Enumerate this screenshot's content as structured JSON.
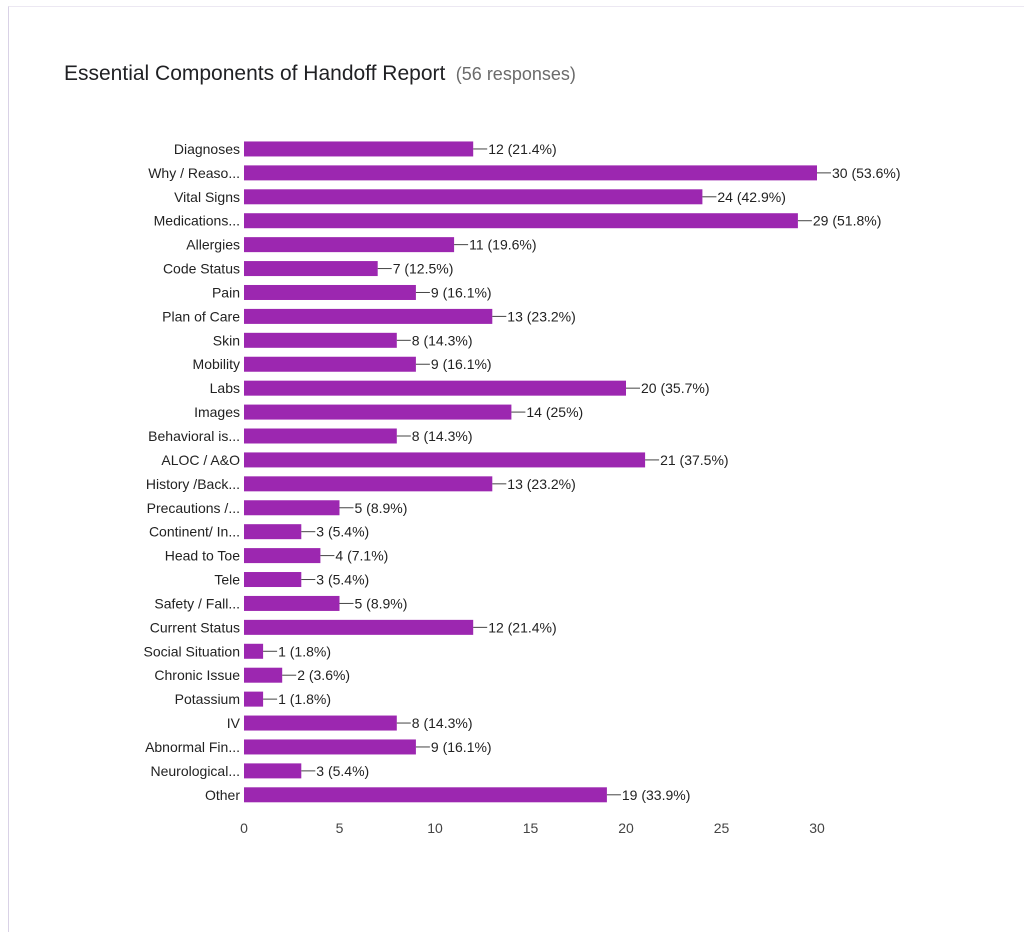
{
  "chart_data": {
    "type": "bar",
    "orientation": "horizontal",
    "title": "Essential Components of Handoff Report",
    "subtitle": "(56 responses)",
    "bar_color": "#9c27b0",
    "categories": [
      "Diagnoses",
      "Why / Reaso...",
      "Vital Signs",
      "Medications...",
      "Allergies",
      "Code Status",
      "Pain",
      "Plan of Care",
      "Skin",
      "Mobility",
      "Labs",
      "Images",
      "Behavioral is...",
      "ALOC / A&O",
      "History /Back...",
      "Precautions /...",
      "Continent/ In...",
      "Head to Toe",
      "Tele",
      "Safety / Fall...",
      "Current Status",
      "Social Situation",
      "Chronic Issue",
      "Potassium",
      "IV",
      "Abnormal Fin...",
      "Neurological...",
      "Other"
    ],
    "values": [
      12,
      30,
      24,
      29,
      11,
      7,
      9,
      13,
      8,
      9,
      20,
      14,
      8,
      21,
      13,
      5,
      3,
      4,
      3,
      5,
      12,
      1,
      2,
      1,
      8,
      9,
      3,
      19
    ],
    "data_labels": [
      "12 (21.4%)",
      "30 (53.6%)",
      "24 (42.9%)",
      "29 (51.8%)",
      "11 (19.6%)",
      "7 (12.5%)",
      "9 (16.1%)",
      "13 (23.2%)",
      "8 (14.3%)",
      "9 (16.1%)",
      "20 (35.7%)",
      "14 (25%)",
      "8 (14.3%)",
      "21 (37.5%)",
      "13 (23.2%)",
      "5 (8.9%)",
      "3 (5.4%)",
      "4 (7.1%)",
      "3 (5.4%)",
      "5 (8.9%)",
      "12 (21.4%)",
      "1 (1.8%)",
      "2 (3.6%)",
      "1 (1.8%)",
      "8 (14.3%)",
      "9 (16.1%)",
      "3 (5.4%)",
      "19 (33.9%)"
    ],
    "xticks": [
      0,
      5,
      10,
      15,
      20,
      25,
      30
    ],
    "xlim": [
      0,
      30
    ],
    "xlabel": "",
    "ylabel": "",
    "grid": false,
    "legend": "none"
  }
}
